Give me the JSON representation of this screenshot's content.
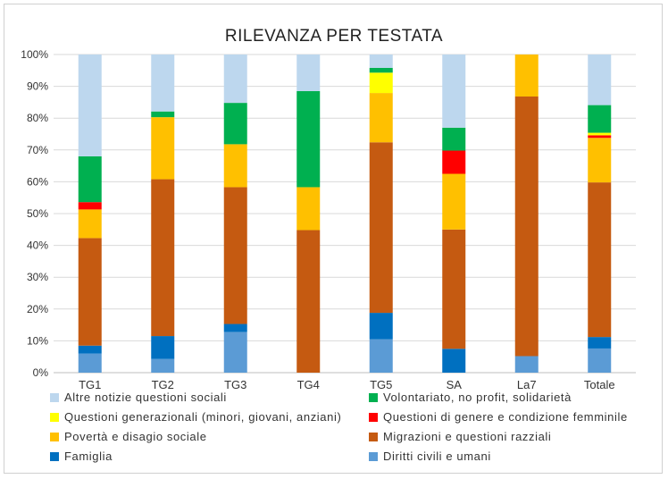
{
  "chart_data": {
    "type": "bar",
    "stacked": true,
    "title": "RILEVANZA PER TESTATA",
    "categories": [
      "TG1",
      "TG2",
      "TG3",
      "TG4",
      "TG5",
      "SA",
      "La7",
      "Totale"
    ],
    "y_ticks": [
      "0%",
      "10%",
      "20%",
      "30%",
      "40%",
      "50%",
      "60%",
      "70%",
      "80%",
      "90%",
      "100%"
    ],
    "ylim": [
      0,
      100
    ],
    "grid": true,
    "legend_position": "bottom",
    "series": [
      {
        "name": "Diritti civili e umani",
        "color": "#5B9BD5",
        "values": [
          6,
          4.3,
          12.8,
          0,
          10.5,
          0,
          5.2,
          7.6
        ]
      },
      {
        "name": "Famiglia",
        "color": "#0070C0",
        "values": [
          2.5,
          7.2,
          2.5,
          0,
          8.3,
          7.5,
          0,
          3.6
        ]
      },
      {
        "name": "Migrazioni e questioni razziali",
        "color": "#C55A11",
        "values": [
          33.8,
          49.3,
          43,
          44.8,
          53.6,
          37.5,
          81.6,
          48.6
        ]
      },
      {
        "name": "Povertà e disagio sociale",
        "color": "#FFC000",
        "values": [
          9,
          19.5,
          13.5,
          13.5,
          15.5,
          17.5,
          13.2,
          14
        ]
      },
      {
        "name": "Questioni di genere e condizione femminile",
        "color": "#FF0000",
        "values": [
          2.3,
          0,
          0,
          0,
          0,
          7.3,
          0,
          0.8
        ]
      },
      {
        "name": "Questioni generazionali (minori, giovani, anziani)",
        "color": "#FFFF00",
        "values": [
          0,
          0,
          0,
          0,
          6.4,
          0,
          0,
          0.8
        ]
      },
      {
        "name": "Volontariato, no profit, solidarietà",
        "color": "#00B050",
        "values": [
          14.4,
          1.8,
          13,
          30.2,
          1.5,
          7.2,
          0,
          8.7
        ]
      },
      {
        "name": "Altre notizie questioni sociali",
        "color": "#BDD7EE",
        "values": [
          32,
          17.9,
          15.2,
          11.5,
          4.2,
          23,
          0,
          15.9
        ]
      }
    ],
    "legend_order": [
      7,
      6,
      5,
      4,
      3,
      2,
      1,
      0
    ]
  }
}
